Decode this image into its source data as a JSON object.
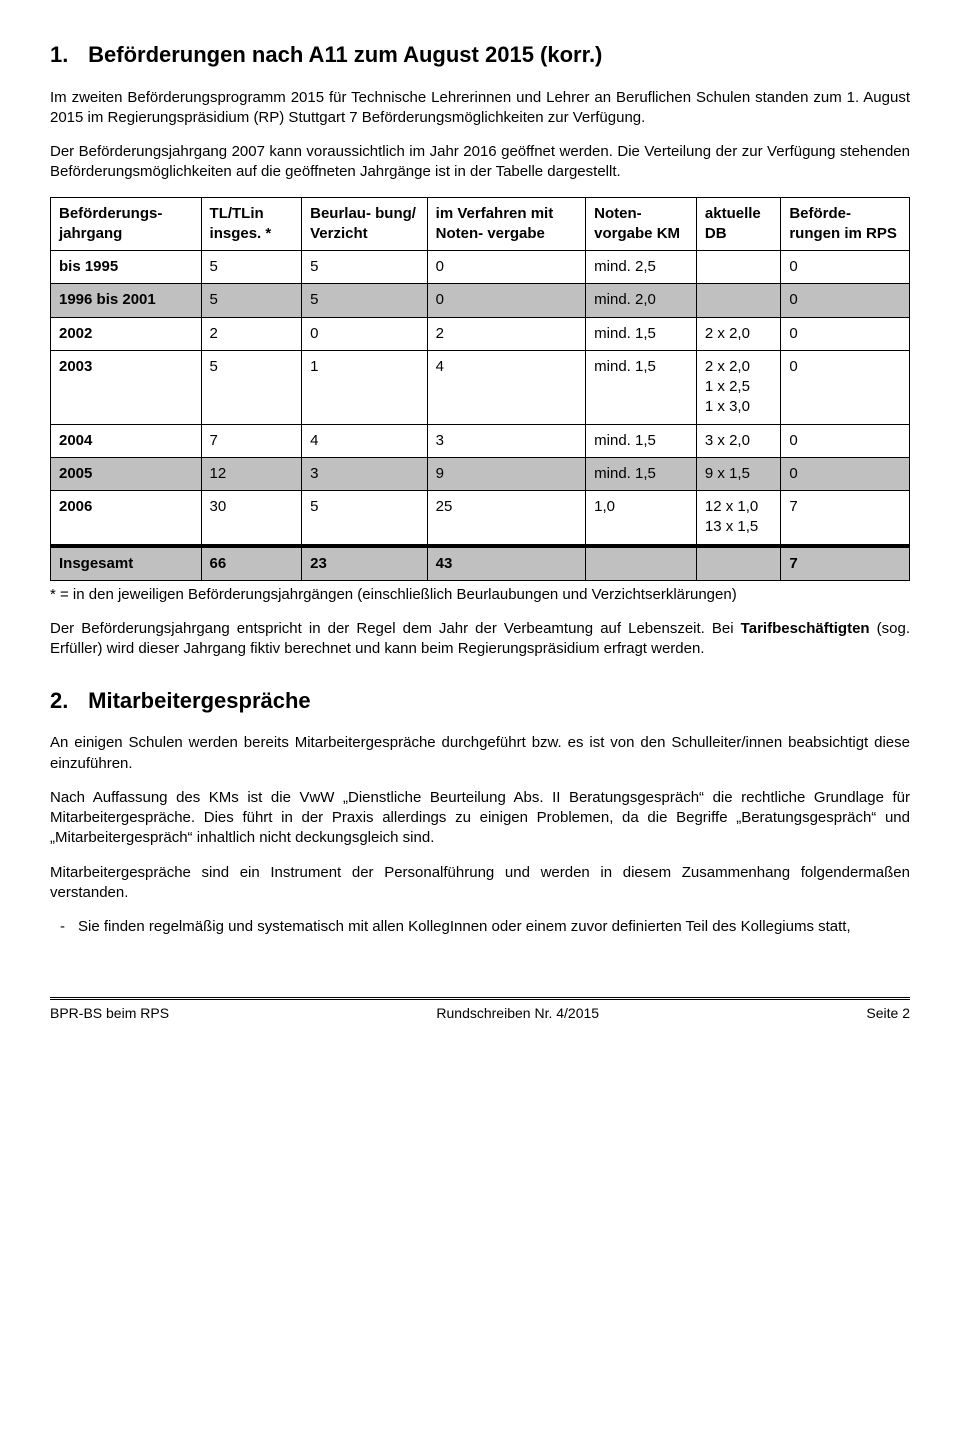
{
  "section1": {
    "number": "1.",
    "title": "Beförderungen nach A11 zum August 2015 (korr.)",
    "para1": "Im zweiten Beförderungsprogramm 2015 für Technische Lehrerinnen und Lehrer an Beruflichen Schulen standen zum 1. August 2015 im Regierungspräsidium (RP) Stuttgart 7 Beförderungsmöglichkeiten zur Verfügung.",
    "para2": "Der Beförderungsjahrgang 2007 kann voraussichtlich im Jahr 2016 geöffnet werden. Die Verteilung der zur Verfügung stehenden Beförderungsmöglichkeiten auf die geöffneten Jahrgänge ist in der Tabelle dargestellt."
  },
  "table": {
    "headers": {
      "c0": "Beförderungs-\njahrgang",
      "c1": "TL/TLin insges. *",
      "c2": "Beurlau-\nbung/ Verzicht",
      "c3": "im Verfahren mit Noten-\nvergabe",
      "c4": "Noten-\nvorgabe KM",
      "c5": "aktuelle DB",
      "c6": "Beförde-\nrungen im RPS"
    },
    "rows": [
      {
        "shaded": false,
        "cells": [
          "bis 1995",
          "5",
          "5",
          "0",
          "mind. 2,5",
          "",
          "0"
        ]
      },
      {
        "shaded": true,
        "cells": [
          "1996 bis 2001",
          "5",
          "5",
          "0",
          "mind. 2,0",
          "",
          "0"
        ]
      },
      {
        "shaded": false,
        "cells": [
          "2002",
          "2",
          "0",
          "2",
          "mind. 1,5",
          "2 x 2,0",
          "0"
        ]
      },
      {
        "shaded": false,
        "cells": [
          "2003",
          "5",
          "1",
          "4",
          "mind. 1,5",
          "2 x 2,0\n1 x 2,5\n1 x 3,0",
          "0"
        ]
      },
      {
        "shaded": false,
        "cells": [
          "2004",
          "7",
          "4",
          "3",
          "mind. 1,5",
          "3 x 2,0",
          "0"
        ]
      },
      {
        "shaded": true,
        "cells": [
          "2005",
          "12",
          "3",
          "9",
          "mind. 1,5",
          "9 x 1,5",
          "0"
        ]
      },
      {
        "shaded": false,
        "cells": [
          "2006",
          "30",
          "5",
          "25",
          "1,0",
          "12 x 1,0\n13 x 1,5",
          "7"
        ]
      }
    ],
    "total": {
      "cells": [
        "Insgesamt",
        "66",
        "23",
        "43",
        "",
        "",
        "7"
      ]
    }
  },
  "after_table": {
    "footnote": "* = in den jeweiligen Beförderungsjahrgängen (einschließlich Beurlaubungen und Verzichtserklärungen)",
    "para3": "Der Beförderungsjahrgang entspricht in der Regel dem Jahr der Verbeamtung auf Lebenszeit. Bei Tarifbeschäftigten (sog. Erfüller) wird dieser Jahrgang fiktiv berechnet und kann beim Regierungspräsidium erfragt werden.",
    "para3_bold": "Tarifbeschäftigten"
  },
  "section2": {
    "number": "2.",
    "title": "Mitarbeitergespräche",
    "para1": "An einigen Schulen werden bereits Mitarbeitergespräche durchgeführt bzw. es ist von den Schulleiter/innen beabsichtigt diese einzuführen.",
    "para2": "Nach Auffassung des KMs ist die VwW „Dienstliche Beurteilung Abs. II Beratungsgespräch“ die rechtliche Grundlage für Mitarbeitergespräche. Dies führt in der Praxis allerdings zu einigen Problemen, da die Begriffe „Beratungsgespräch“ und „Mitarbeitergespräch“ inhaltlich nicht deckungsgleich sind.",
    "para3": "Mitarbeitergespräche sind ein Instrument der Personalführung und werden in diesem Zusammenhang folgendermaßen verstanden.",
    "bullet1": "Sie finden regelmäßig und systematisch mit allen KollegInnen oder einem zuvor definierten Teil des Kollegiums statt,"
  },
  "footer": {
    "left": "BPR-BS beim RPS",
    "center": "Rundschreiben Nr. 4/2015",
    "right": "Seite 2"
  }
}
